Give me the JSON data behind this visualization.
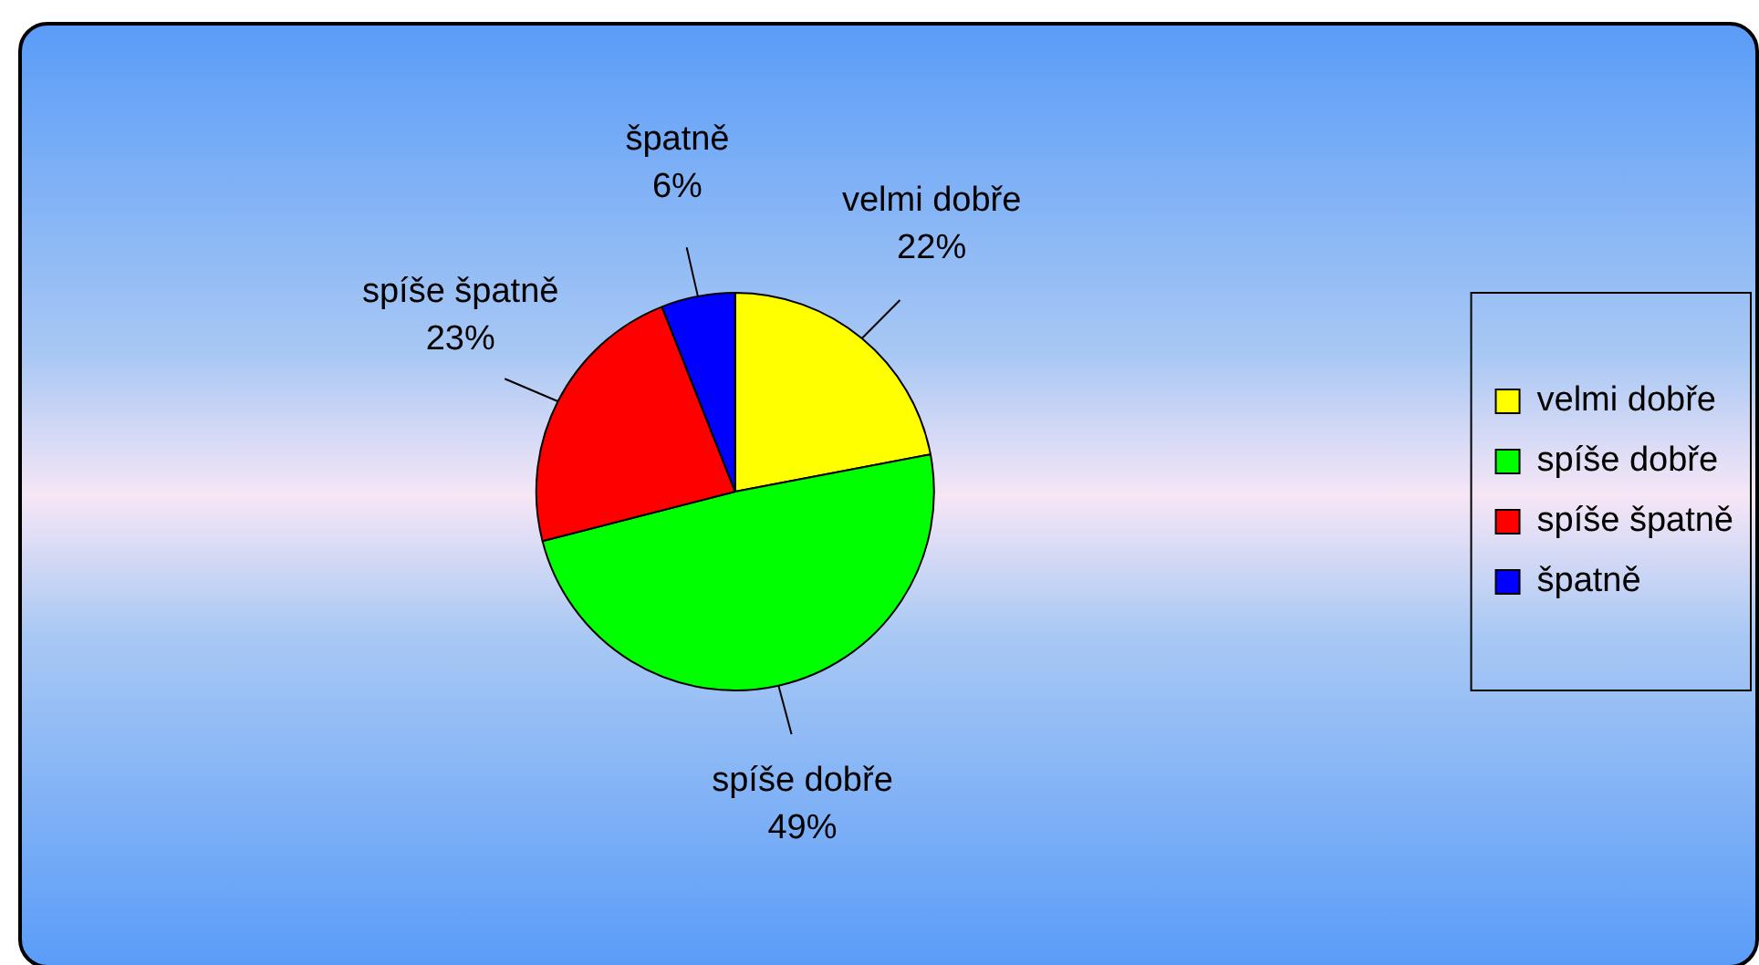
{
  "chart_data": {
    "type": "pie",
    "categories": [
      "velmi dobře",
      "spíše dobře",
      "spíše špatně",
      "špatně"
    ],
    "values": [
      22,
      49,
      23,
      6
    ],
    "colors": [
      "#ffff00",
      "#00ff00",
      "#ff0000",
      "#0000ff"
    ],
    "value_labels": [
      "22%",
      "49%",
      "23%",
      "6%"
    ],
    "legend": "right"
  }
}
